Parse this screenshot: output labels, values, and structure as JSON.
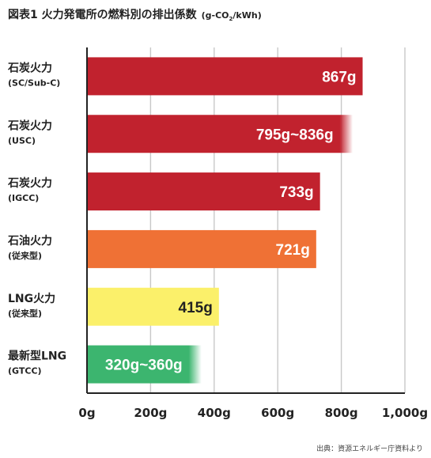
{
  "title": {
    "main": "図表1 火力発電所の燃料別の排出係数",
    "unit_prefix": "(g-CO",
    "unit_sub": "2",
    "unit_suffix": "/kWh)"
  },
  "source": "出典：資源エネルギー庁資料より",
  "chart_data": {
    "type": "bar",
    "orientation": "horizontal",
    "title": "図表1 火力発電所の燃料別の排出係数",
    "unit": "g-CO2/kWh",
    "categories": [
      {
        "main": "石炭火力",
        "sub": "(SC/Sub-C)"
      },
      {
        "main": "石炭火力",
        "sub": "(USC)"
      },
      {
        "main": "石炭火力",
        "sub": "(IGCC)"
      },
      {
        "main": "石油火力",
        "sub": "(従来型)"
      },
      {
        "main": "LNG火力",
        "sub": "(従来型)"
      },
      {
        "main": "最新型LNG",
        "sub": "(GTCC)"
      }
    ],
    "values": [
      867,
      836,
      733,
      721,
      415,
      360
    ],
    "ranges": [
      null,
      [
        795,
        836
      ],
      null,
      null,
      null,
      [
        320,
        360
      ]
    ],
    "labels": [
      "867g",
      "795g~836g",
      "733g",
      "721g",
      "415g",
      "320g~360g"
    ],
    "colors": [
      "#c1222e",
      "#c1222e",
      "#c1222e",
      "#ef7135",
      "#fbf06a",
      "#3cb56f"
    ],
    "label_colors": [
      "#ffffff",
      "#ffffff",
      "#ffffff",
      "#ffffff",
      "#222222",
      "#ffffff"
    ],
    "xlim": [
      0,
      1000
    ],
    "xticks": [
      0,
      200,
      400,
      600,
      800,
      1000
    ],
    "xtick_labels": [
      "0g",
      "200g",
      "400g",
      "600g",
      "800g",
      "1,000g"
    ],
    "grid": true
  }
}
